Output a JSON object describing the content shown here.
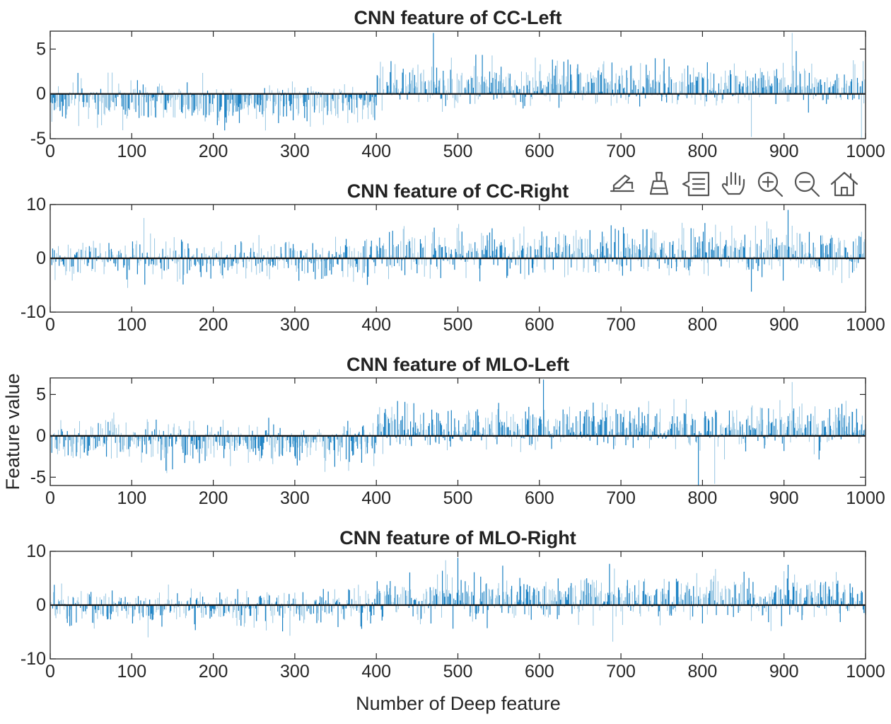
{
  "figure": {
    "xlabel": "Number of Deep feature",
    "ylabel": "Feature value"
  },
  "colors": {
    "bar_light": "#6baed6",
    "bar_dark": "#0072bd",
    "zero_line": "#111111",
    "axes": "#262626"
  },
  "toolbar": {
    "icons": [
      "export-icon",
      "brush-icon",
      "datatips-icon",
      "pan-hand-icon",
      "zoom-in-icon",
      "zoom-out-icon",
      "home-icon"
    ]
  },
  "chart_data": [
    {
      "type": "bar",
      "title": "CNN feature of CC-Left",
      "xlim": [
        0,
        1000
      ],
      "ylim": [
        -5,
        7
      ],
      "xticks": [
        0,
        100,
        200,
        300,
        400,
        500,
        600,
        700,
        800,
        900,
        1000
      ],
      "yticks": [
        -5,
        0,
        5
      ],
      "n_features": 1000,
      "segments": [
        {
          "from": 0,
          "to": 400,
          "mean": -1.0,
          "spread": 2.2
        },
        {
          "from": 400,
          "to": 1000,
          "mean": 1.0,
          "spread": 2.4
        }
      ],
      "peaks": [
        {
          "x": 470,
          "value": 6.8
        },
        {
          "x": 910,
          "value": 6.8
        },
        {
          "x": 860,
          "value": -4.8
        },
        {
          "x": 995,
          "value": -4.9
        }
      ]
    },
    {
      "type": "bar",
      "title": "CNN feature of CC-Right",
      "xlim": [
        0,
        1000
      ],
      "ylim": [
        -10,
        10
      ],
      "xticks": [
        0,
        100,
        200,
        300,
        400,
        500,
        600,
        700,
        800,
        900,
        1000
      ],
      "yticks": [
        -10,
        0,
        10
      ],
      "n_features": 1000,
      "segments": [
        {
          "from": 0,
          "to": 400,
          "mean": -0.3,
          "spread": 3.5
        },
        {
          "from": 400,
          "to": 1000,
          "mean": 1.2,
          "spread": 4.2
        }
      ],
      "peaks": [
        {
          "x": 905,
          "value": 9.0
        },
        {
          "x": 115,
          "value": 7.5
        },
        {
          "x": 860,
          "value": -6.2
        },
        {
          "x": 95,
          "value": -5.5
        }
      ]
    },
    {
      "type": "bar",
      "title": "CNN feature of MLO-Left",
      "xlim": [
        0,
        1000
      ],
      "ylim": [
        -6,
        7
      ],
      "xticks": [
        0,
        100,
        200,
        300,
        400,
        500,
        600,
        700,
        800,
        900,
        1000
      ],
      "yticks": [
        -5,
        0,
        5
      ],
      "n_features": 1000,
      "segments": [
        {
          "from": 0,
          "to": 400,
          "mean": -0.8,
          "spread": 2.4
        },
        {
          "from": 400,
          "to": 1000,
          "mean": 1.0,
          "spread": 2.6
        }
      ],
      "peaks": [
        {
          "x": 605,
          "value": 6.8
        },
        {
          "x": 910,
          "value": 6.5
        },
        {
          "x": 795,
          "value": -6.0
        },
        {
          "x": 815,
          "value": -5.8
        }
      ]
    },
    {
      "type": "bar",
      "title": "CNN feature of MLO-Right",
      "xlim": [
        0,
        1000
      ],
      "ylim": [
        -10,
        10
      ],
      "xticks": [
        0,
        100,
        200,
        300,
        400,
        500,
        600,
        700,
        800,
        900,
        1000
      ],
      "yticks": [
        -10,
        0,
        10
      ],
      "n_features": 1000,
      "segments": [
        {
          "from": 0,
          "to": 400,
          "mean": -0.6,
          "spread": 3.2
        },
        {
          "from": 400,
          "to": 1000,
          "mean": 1.3,
          "spread": 4.0
        }
      ],
      "peaks": [
        {
          "x": 500,
          "value": 8.8
        },
        {
          "x": 905,
          "value": 7.5
        },
        {
          "x": 690,
          "value": -6.8
        },
        {
          "x": 120,
          "value": -6.0
        }
      ]
    }
  ]
}
